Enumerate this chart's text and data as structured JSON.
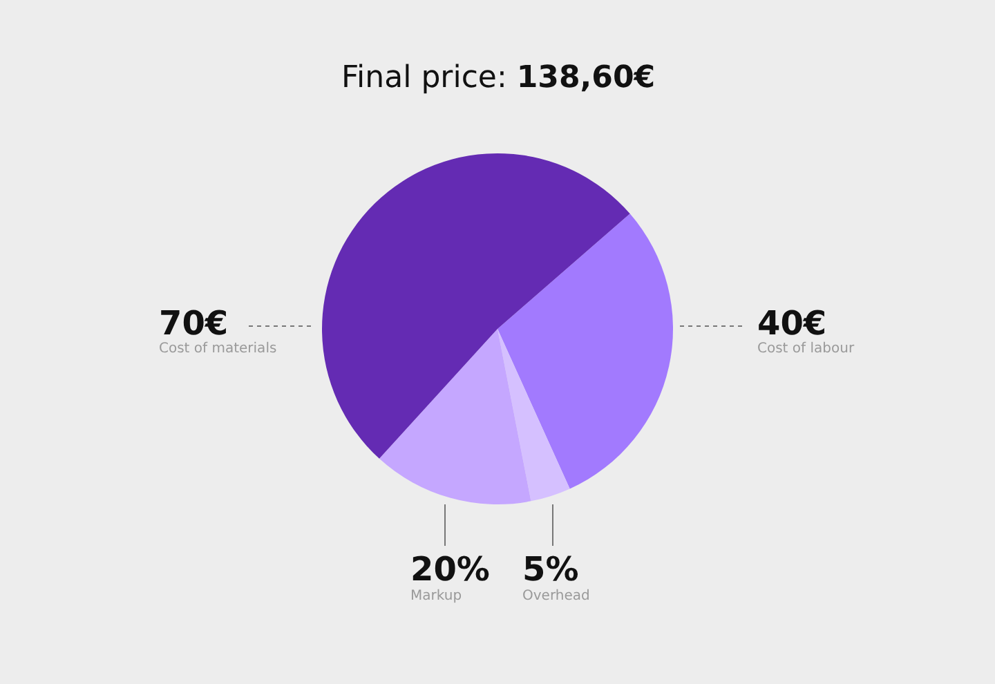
{
  "chart_data": {
    "type": "pie",
    "title": "Final price: 138,60€",
    "categories": [
      "Cost of labour",
      "Overhead",
      "Markup",
      "Cost of materials"
    ],
    "values": [
      40,
      5,
      20,
      70
    ],
    "value_labels": [
      "40€",
      "5%",
      "20%",
      "70€"
    ],
    "colors": [
      "#a27afe",
      "#d5c0ff",
      "#c5a7ff",
      "#642bb3"
    ],
    "legend": false
  }
}
